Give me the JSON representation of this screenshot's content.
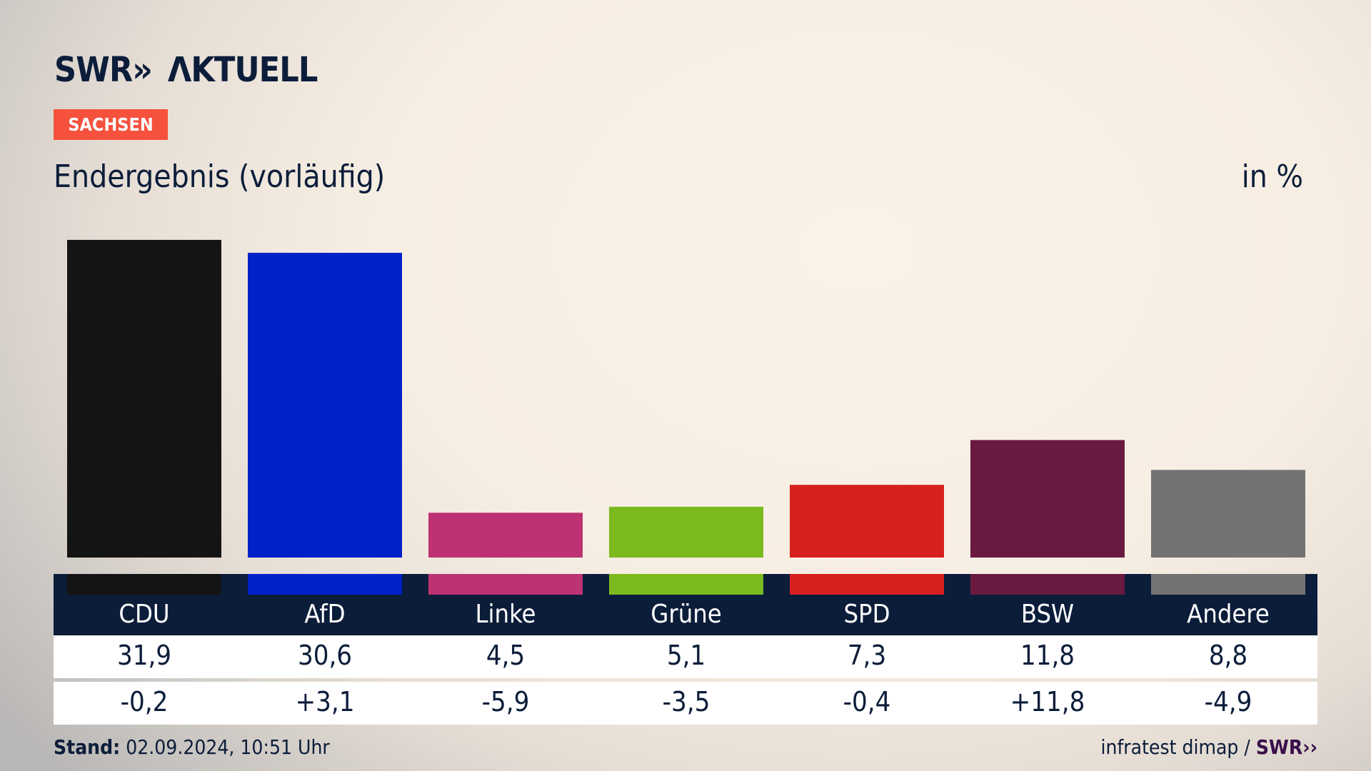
{
  "header": {
    "logo": "SWR» AKTUELL",
    "region": "SACHSEN",
    "title": "Endergebnis (vorläufig)",
    "unit": "in %"
  },
  "chart_data": {
    "type": "bar",
    "title": "Endergebnis (vorläufig)",
    "ylabel": "in %",
    "ylim": [
      0,
      31.9
    ],
    "grid": false,
    "categories": [
      "CDU",
      "AfD",
      "Linke",
      "Grüne",
      "SPD",
      "BSW",
      "Andere"
    ],
    "values": [
      31.9,
      30.6,
      4.5,
      5.1,
      7.3,
      11.8,
      8.8
    ],
    "value_labels": [
      "31,9",
      "30,6",
      "4,5",
      "5,1",
      "7,3",
      "11,8",
      "8,8"
    ],
    "change_labels": [
      "-0,2",
      "+3,1",
      "-5,9",
      "-3,5",
      "-0,4",
      "+11,8",
      "-4,9"
    ],
    "changes": [
      -0.2,
      3.1,
      -5.9,
      -3.5,
      -0.4,
      11.8,
      -4.9
    ],
    "colors": [
      "#141414",
      "#0020c8",
      "#bc3273",
      "#7aba1e",
      "#d7201f",
      "#6a1a40",
      "#737373"
    ]
  },
  "footer": {
    "stand_label": "Stand:",
    "stand_value": " 02.09.2024, 10:51 Uhr",
    "source": "infratest dimap / ",
    "source_logo": "SWR»"
  }
}
